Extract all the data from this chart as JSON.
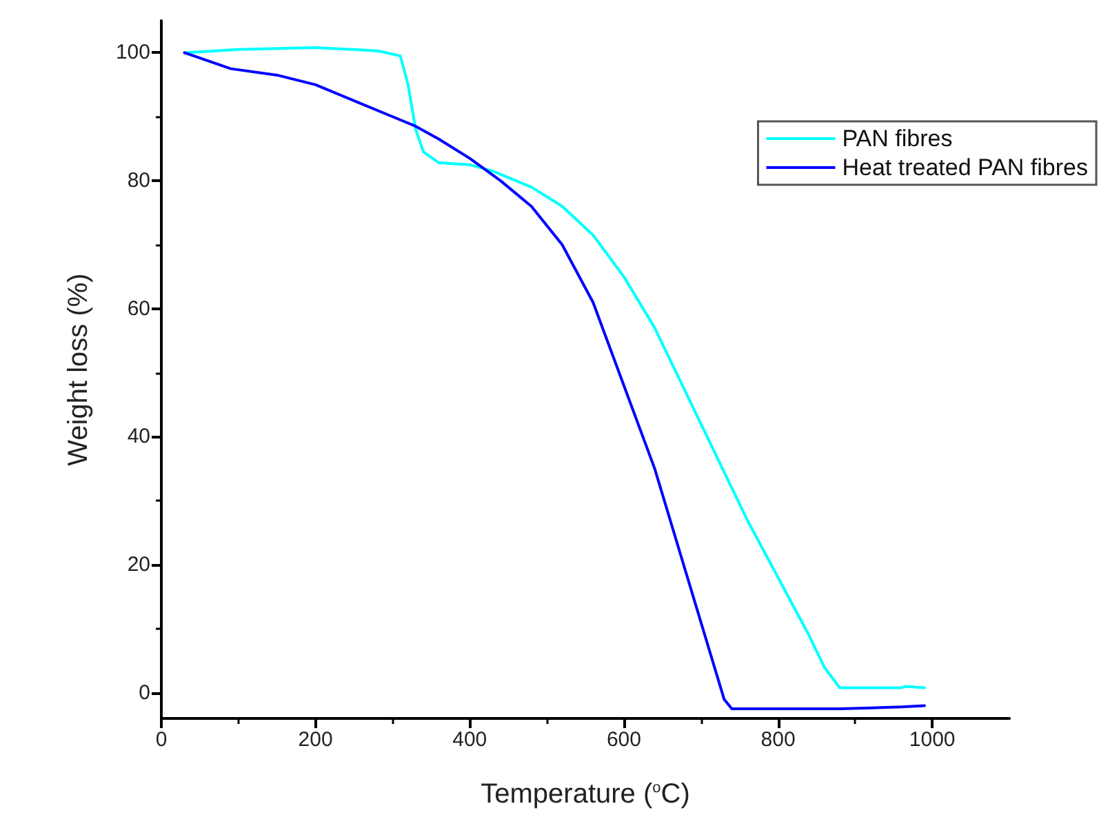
{
  "chart_data": {
    "type": "line",
    "xlabel": "Temperature ($^{o}$C)",
    "ylabel": "Weight loss (%)",
    "xlim": [
      0,
      1100
    ],
    "xticks": [
      0,
      200,
      400,
      600,
      800,
      1000
    ],
    "ylim": [
      -4,
      105
    ],
    "yticks": [
      0,
      20,
      40,
      60,
      80,
      100
    ],
    "grid": false,
    "legend": "top right",
    "marker": "none",
    "line_style": "solid",
    "series": [
      {
        "name": "PAN fibres",
        "color": "#00ffff",
        "x": [
          30,
          100,
          200,
          280,
          310,
          320,
          330,
          340,
          360,
          400,
          430,
          480,
          520,
          560,
          600,
          640,
          680,
          720,
          760,
          800,
          840,
          860,
          880,
          960,
          965,
          990
        ],
        "values": [
          100,
          100.5,
          100.8,
          100.3,
          99.5,
          95,
          88,
          84.5,
          82.8,
          82.5,
          81.5,
          79,
          76,
          71.5,
          65,
          57,
          47,
          37,
          27,
          18,
          9,
          4,
          0.8,
          0.8,
          1,
          0.8
        ]
      },
      {
        "name": "Heat treated PAN fibres",
        "color": "#0000ff",
        "x": [
          30,
          90,
          150,
          200,
          250,
          300,
          330,
          360,
          400,
          440,
          480,
          520,
          560,
          600,
          640,
          680,
          710,
          730,
          740,
          880,
          960,
          990
        ],
        "values": [
          100,
          97.5,
          96.5,
          95,
          92.5,
          90,
          88.5,
          86.5,
          83.5,
          80,
          76,
          70,
          61,
          48,
          35,
          19,
          7,
          -1,
          -2.5,
          -2.5,
          -2.2,
          -2
        ]
      }
    ]
  }
}
